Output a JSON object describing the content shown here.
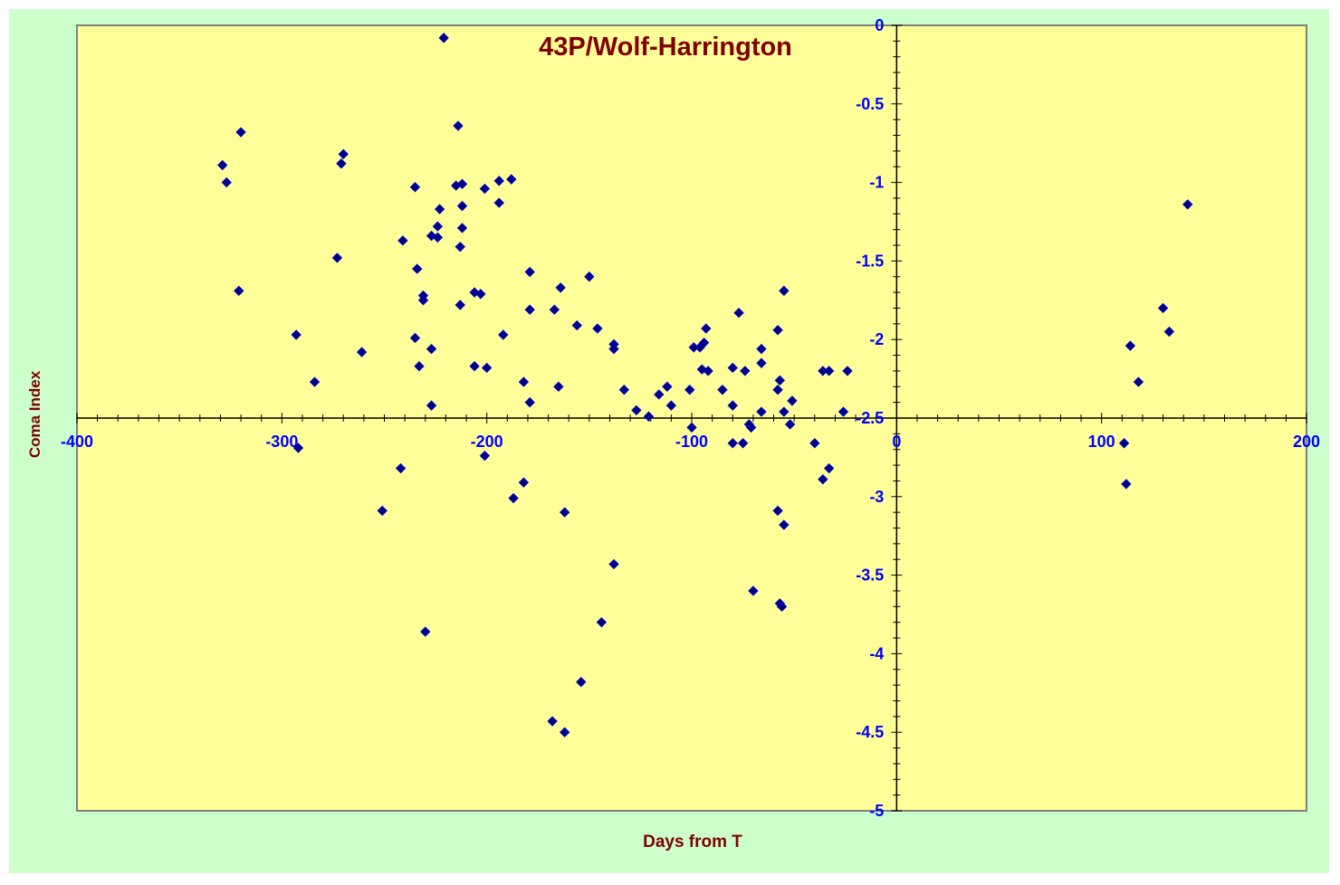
{
  "colors": {
    "outer_background": "#ccffcc",
    "plot_background": "#ffff99",
    "plot_border": "#808080",
    "axis_line": "#000000",
    "tick_label": "#0000ff",
    "title": "#800000",
    "axis_title": "#800000",
    "marker_fill": "#000080",
    "marker_stroke": "#0000cc"
  },
  "chart_data": {
    "type": "scatter",
    "title": "43P/Wolf-Harrington",
    "xlabel": "Days from T",
    "ylabel": "Coma Index",
    "xlim": [
      -400,
      200
    ],
    "ylim": [
      -5,
      0
    ],
    "x_ticks": [
      -400,
      -300,
      -200,
      -100,
      0,
      100,
      200
    ],
    "x_tick_labels": [
      "-400",
      "-300",
      "-200",
      "-100",
      "0",
      "100",
      "200"
    ],
    "y_ticks": [
      0,
      -0.5,
      -1,
      -1.5,
      -2,
      -2.5,
      -3,
      -3.5,
      -4,
      -4.5,
      -5
    ],
    "y_tick_labels": [
      "0",
      "-0.5",
      "-1",
      "-1.5",
      "-2",
      "-2.5",
      "-3",
      "-3.5",
      "-4",
      "-4.5",
      "-5"
    ],
    "x_axis_crosses_y": -2.5,
    "y_axis_crosses_x": 0,
    "grid": false,
    "legend": "none",
    "marker": "diamond",
    "series": [
      {
        "points": [
          [
            -221,
            -0.08
          ],
          [
            -214,
            -0.64
          ],
          [
            -320,
            -0.68
          ],
          [
            -329,
            -0.89
          ],
          [
            -327,
            -1.0
          ],
          [
            -270,
            -0.82
          ],
          [
            -271,
            -0.88
          ],
          [
            -235,
            -1.03
          ],
          [
            -215,
            -1.02
          ],
          [
            -212,
            -1.01
          ],
          [
            -194,
            -0.99
          ],
          [
            -188,
            -0.98
          ],
          [
            -201,
            -1.04
          ],
          [
            -194,
            -1.13
          ],
          [
            -223,
            -1.17
          ],
          [
            -212,
            -1.15
          ],
          [
            -224,
            -1.28
          ],
          [
            -212,
            -1.29
          ],
          [
            -227,
            -1.34
          ],
          [
            -224,
            -1.35
          ],
          [
            -241,
            -1.37
          ],
          [
            -213,
            -1.41
          ],
          [
            -273,
            -1.48
          ],
          [
            -234,
            -1.55
          ],
          [
            -179,
            -1.57
          ],
          [
            -150,
            -1.6
          ],
          [
            -321,
            -1.69
          ],
          [
            -164,
            -1.67
          ],
          [
            -231,
            -1.72
          ],
          [
            -206,
            -1.7
          ],
          [
            -203,
            -1.71
          ],
          [
            -231,
            -1.75
          ],
          [
            -213,
            -1.78
          ],
          [
            -179,
            -1.81
          ],
          [
            -167,
            -1.81
          ],
          [
            -156,
            -1.91
          ],
          [
            -146,
            -1.93
          ],
          [
            -192,
            -1.97
          ],
          [
            -293,
            -1.97
          ],
          [
            -235,
            -1.99
          ],
          [
            -138,
            -2.03
          ],
          [
            -138,
            -2.06
          ],
          [
            -227,
            -2.06
          ],
          [
            -261,
            -2.08
          ],
          [
            -233,
            -2.17
          ],
          [
            -206,
            -2.17
          ],
          [
            -200,
            -2.18
          ],
          [
            -284,
            -2.27
          ],
          [
            -182,
            -2.27
          ],
          [
            -165,
            -2.3
          ],
          [
            -133,
            -2.32
          ],
          [
            -227,
            -2.42
          ],
          [
            -179,
            -2.4
          ],
          [
            -127,
            -2.45
          ],
          [
            -121,
            -2.49
          ],
          [
            -116,
            -2.35
          ],
          [
            -112,
            -2.3
          ],
          [
            -110,
            -2.42
          ],
          [
            -101,
            -2.32
          ],
          [
            -99,
            -2.05
          ],
          [
            -96,
            -2.05
          ],
          [
            -94,
            -2.02
          ],
          [
            -93,
            -1.93
          ],
          [
            -95,
            -2.19
          ],
          [
            -92,
            -2.2
          ],
          [
            -77,
            -1.83
          ],
          [
            -85,
            -2.32
          ],
          [
            -74,
            -2.2
          ],
          [
            -80,
            -2.18
          ],
          [
            -80,
            -2.42
          ],
          [
            -66,
            -2.06
          ],
          [
            -66,
            -2.15
          ],
          [
            -66,
            -2.46
          ],
          [
            -58,
            -1.94
          ],
          [
            -58,
            -2.32
          ],
          [
            -57,
            -2.26
          ],
          [
            -55,
            -1.69
          ],
          [
            -55,
            -2.46
          ],
          [
            -51,
            -2.39
          ],
          [
            -52,
            -2.54
          ],
          [
            -36,
            -2.2
          ],
          [
            -33,
            -2.2
          ],
          [
            -26,
            -2.46
          ],
          [
            -24,
            -2.2
          ],
          [
            -100,
            -2.56
          ],
          [
            -72,
            -2.54
          ],
          [
            -71,
            -2.56
          ],
          [
            -80,
            -2.66
          ],
          [
            -75,
            -2.66
          ],
          [
            -40,
            -2.66
          ],
          [
            -292,
            -2.69
          ],
          [
            -201,
            -2.74
          ],
          [
            -242,
            -2.82
          ],
          [
            -33,
            -2.82
          ],
          [
            -36,
            -2.89
          ],
          [
            -182,
            -2.91
          ],
          [
            -187,
            -3.01
          ],
          [
            -251,
            -3.09
          ],
          [
            -162,
            -3.1
          ],
          [
            -58,
            -3.09
          ],
          [
            -55,
            -3.18
          ],
          [
            -138,
            -3.43
          ],
          [
            -70,
            -3.6
          ],
          [
            -57,
            -3.68
          ],
          [
            -56,
            -3.7
          ],
          [
            -230,
            -3.86
          ],
          [
            -144,
            -3.8
          ],
          [
            -154,
            -4.18
          ],
          [
            -168,
            -4.43
          ],
          [
            -162,
            -4.5
          ],
          [
            111,
            -2.66
          ],
          [
            112,
            -2.92
          ],
          [
            114,
            -2.04
          ],
          [
            118,
            -2.27
          ],
          [
            130,
            -1.8
          ],
          [
            133,
            -1.95
          ],
          [
            142,
            -1.14
          ]
        ]
      }
    ]
  }
}
